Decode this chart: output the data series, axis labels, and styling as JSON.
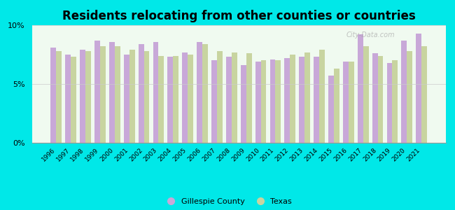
{
  "title": "Residents relocating from other counties or countries",
  "years": [
    1996,
    1997,
    1998,
    1999,
    2000,
    2001,
    2002,
    2003,
    2004,
    2005,
    2006,
    2007,
    2008,
    2009,
    2010,
    2011,
    2012,
    2013,
    2014,
    2015,
    2016,
    2017,
    2018,
    2019,
    2020,
    2021
  ],
  "gillespie": [
    8.1,
    7.5,
    7.9,
    8.7,
    8.6,
    7.5,
    8.4,
    8.6,
    7.3,
    7.7,
    8.6,
    7.0,
    7.3,
    6.6,
    6.9,
    7.1,
    7.2,
    7.3,
    7.3,
    5.7,
    6.9,
    9.2,
    7.6,
    6.8,
    8.7,
    9.3
  ],
  "texas": [
    7.8,
    7.3,
    7.8,
    8.2,
    8.2,
    7.9,
    7.8,
    7.4,
    7.4,
    7.5,
    8.4,
    7.8,
    7.7,
    7.6,
    7.0,
    7.0,
    7.5,
    7.7,
    7.9,
    6.3,
    6.9,
    8.2,
    7.4,
    7.0,
    7.8,
    8.2
  ],
  "gillespie_color": "#c8a8d8",
  "texas_color": "#c8d4a0",
  "background_color": "#f0faf0",
  "outer_background": "#00e8e8",
  "title_fontsize": 12,
  "ylim": [
    0,
    10
  ],
  "yticks": [
    0,
    5,
    10
  ],
  "ytick_labels": [
    "0%",
    "5%",
    "10%"
  ],
  "bar_width": 0.38,
  "legend_gillespie": "Gillespie County",
  "legend_texas": "Texas"
}
